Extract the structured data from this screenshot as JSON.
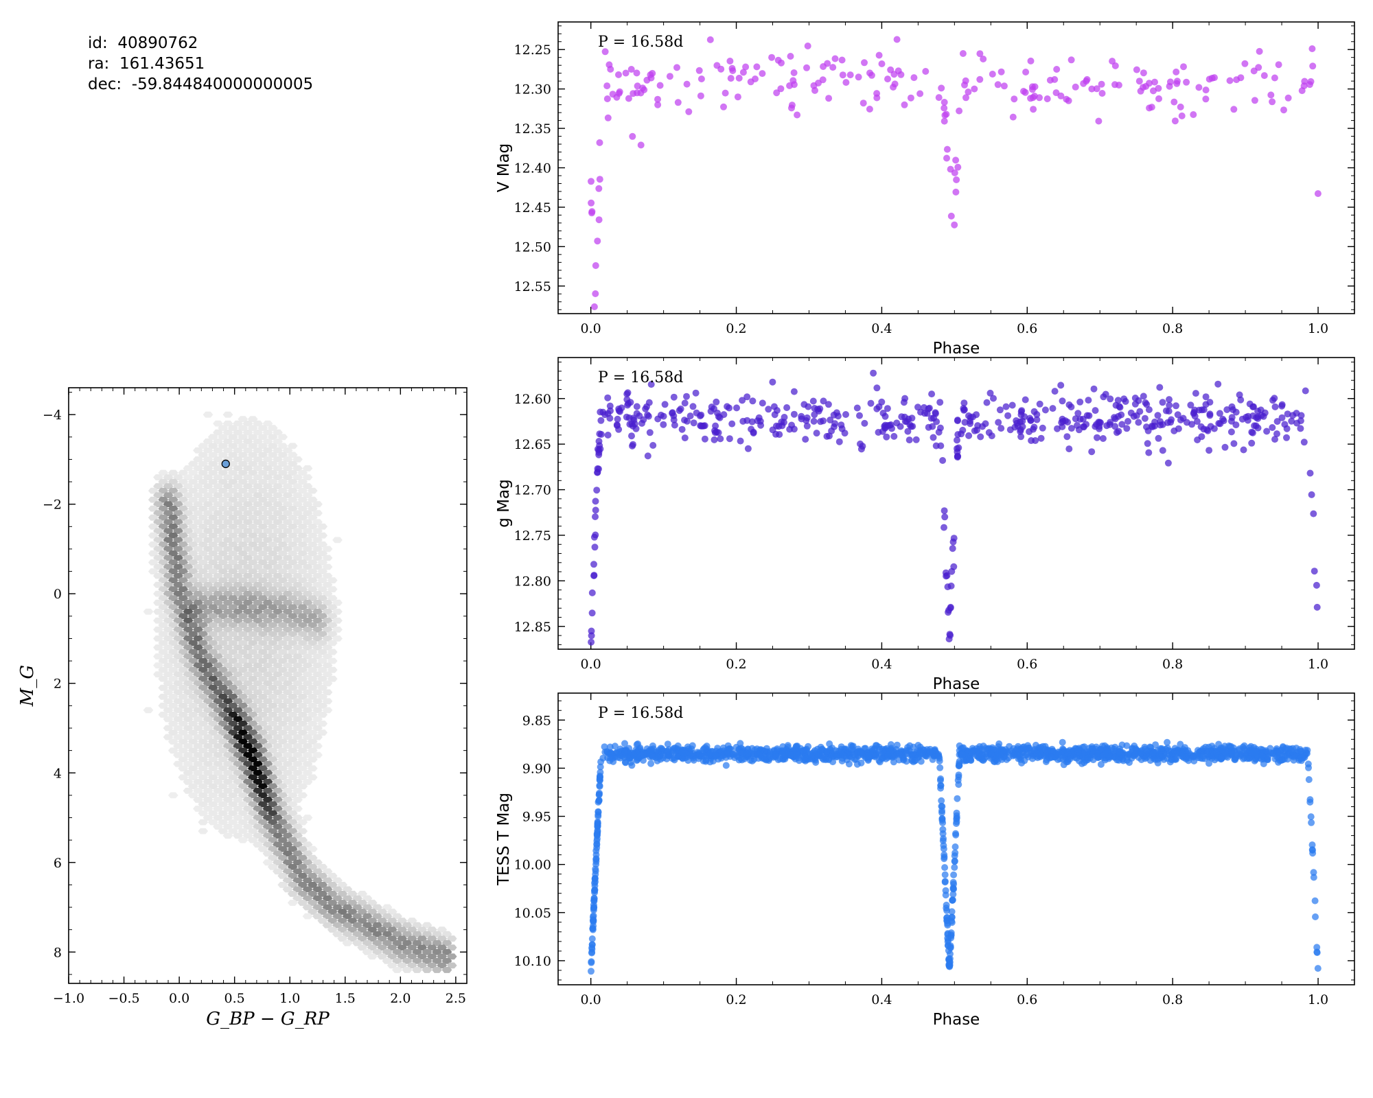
{
  "info": {
    "id_label": "id:",
    "id_value": "40890762",
    "ra_label": "ra:",
    "ra_value": "161.43651",
    "dec_label": "dec:",
    "dec_value": "-59.844840000000005"
  },
  "chart_data": [
    {
      "type": "heatmap",
      "xlabel": "G_BP − G_RP",
      "ylabel": "M_G",
      "xlim": [
        -1.0,
        2.6
      ],
      "ylim": [
        8.7,
        -4.6
      ],
      "xticks": [
        "−1.0",
        "−0.5",
        "0.0",
        "0.5",
        "1.0",
        "1.5",
        "2.0",
        "2.5"
      ],
      "xtick_values": [
        -1.0,
        -0.5,
        0.0,
        0.5,
        1.0,
        1.5,
        2.0,
        2.5
      ],
      "yticks": [
        "−4",
        "−2",
        "0",
        "2",
        "4",
        "6",
        "8"
      ],
      "ytick_values": [
        -4,
        -2,
        0,
        2,
        4,
        6,
        8
      ],
      "colormap": "Greys",
      "density_ridges": [
        {
          "path": [
            [
              -0.1,
              -2.0
            ],
            [
              0.0,
              0.0
            ],
            [
              0.2,
              1.5
            ],
            [
              0.5,
              2.8
            ],
            [
              0.65,
              3.6
            ],
            [
              0.85,
              5.0
            ],
            [
              1.1,
              6.3
            ],
            [
              1.4,
              7.0
            ],
            [
              2.0,
              7.8
            ],
            [
              2.4,
              8.1
            ]
          ],
          "density": 1.0
        },
        {
          "path": [
            [
              0.2,
              0.3
            ],
            [
              0.6,
              0.3
            ],
            [
              1.0,
              0.4
            ],
            [
              1.25,
              0.6
            ]
          ],
          "density": 0.55
        }
      ],
      "highlight_point": {
        "x": 0.42,
        "y": -2.9,
        "color": "#6a9fd8"
      }
    },
    {
      "type": "scatter",
      "annotation": "P = 16.58d",
      "xlabel": "Phase",
      "ylabel": "V Mag",
      "xlim": [
        -0.045,
        1.05
      ],
      "ylim": [
        12.585,
        12.215
      ],
      "xticks": [
        "0.0",
        "0.2",
        "0.4",
        "0.6",
        "0.8",
        "1.0"
      ],
      "xtick_values": [
        0.0,
        0.2,
        0.4,
        0.6,
        0.8,
        1.0
      ],
      "yticks": [
        "12.25",
        "12.30",
        "12.35",
        "12.40",
        "12.45",
        "12.50",
        "12.55"
      ],
      "ytick_values": [
        12.25,
        12.3,
        12.35,
        12.4,
        12.45,
        12.5,
        12.55
      ],
      "color": "#bf40f0",
      "baseline": 12.293,
      "scatter": 0.022,
      "n_points": 240,
      "eclipses": [
        {
          "phase": 0.005,
          "depth": 0.27,
          "width": 0.012
        },
        {
          "phase": 0.497,
          "depth": 0.2,
          "width": 0.012
        }
      ],
      "seed": 11
    },
    {
      "type": "scatter",
      "annotation": "P = 16.58d",
      "xlabel": "Phase",
      "ylabel": "g Mag",
      "xlim": [
        -0.045,
        1.05
      ],
      "ylim": [
        12.875,
        12.555
      ],
      "xticks": [
        "0.0",
        "0.2",
        "0.4",
        "0.6",
        "0.8",
        "1.0"
      ],
      "xtick_values": [
        0.0,
        0.2,
        0.4,
        0.6,
        0.8,
        1.0
      ],
      "yticks": [
        "12.60",
        "12.65",
        "12.70",
        "12.75",
        "12.80",
        "12.85"
      ],
      "ytick_values": [
        12.6,
        12.65,
        12.7,
        12.75,
        12.8,
        12.85
      ],
      "color": "#4a1fcf",
      "baseline": 12.623,
      "scatter": 0.014,
      "n_points": 560,
      "eclipses": [
        {
          "phase": 0.0,
          "depth": 0.24,
          "width": 0.013
        },
        {
          "phase": 0.493,
          "depth": 0.24,
          "width": 0.013
        }
      ],
      "seed": 23
    },
    {
      "type": "scatter",
      "annotation": "P = 16.58d",
      "xlabel": "Phase",
      "ylabel": "TESS T Mag",
      "xlim": [
        -0.045,
        1.05
      ],
      "ylim": [
        10.125,
        9.822
      ],
      "xticks": [
        "0.0",
        "0.2",
        "0.4",
        "0.6",
        "0.8",
        "1.0"
      ],
      "xtick_values": [
        0.0,
        0.2,
        0.4,
        0.6,
        0.8,
        1.0
      ],
      "yticks": [
        "9.85",
        "9.90",
        "9.95",
        "10.00",
        "10.05",
        "10.10"
      ],
      "ytick_values": [
        9.85,
        9.9,
        9.95,
        10.0,
        10.05,
        10.1
      ],
      "color": "#2b7cf0",
      "baseline": 9.885,
      "scatter": 0.004,
      "n_points": 1700,
      "eclipses": [
        {
          "phase": 0.0,
          "depth": 0.225,
          "width": 0.014
        },
        {
          "phase": 0.493,
          "depth": 0.225,
          "width": 0.014
        }
      ],
      "seed": 37
    }
  ]
}
